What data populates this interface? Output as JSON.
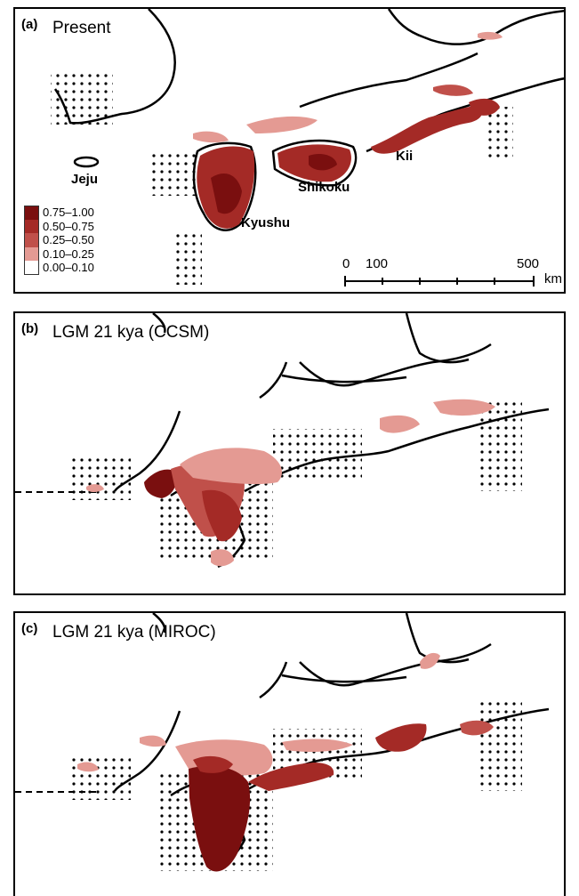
{
  "panels": [
    {
      "label": "(a)",
      "title": "Present"
    },
    {
      "label": "(b)",
      "title": "LGM 21 kya (CCSM)"
    },
    {
      "label": "(c)",
      "title": "LGM 21 kya (MIROC)"
    }
  ],
  "regions": {
    "jeju": "Jeju",
    "kyushu": "Kyushu",
    "shikoku": "Shikoku",
    "kii": "Kii"
  },
  "legend": {
    "items": [
      {
        "label": "0.75–1.00",
        "color": "#7a0f0f"
      },
      {
        "label": "0.50–0.75",
        "color": "#a42a26"
      },
      {
        "label": "0.25–0.50",
        "color": "#c0504a"
      },
      {
        "label": "0.10–0.25",
        "color": "#e49a93"
      },
      {
        "label": "0.00–0.10",
        "color": "#ffffff"
      }
    ]
  },
  "scale_bar": {
    "tick_0": "0",
    "tick_100": "100",
    "tick_500": "500",
    "unit": "km"
  }
}
